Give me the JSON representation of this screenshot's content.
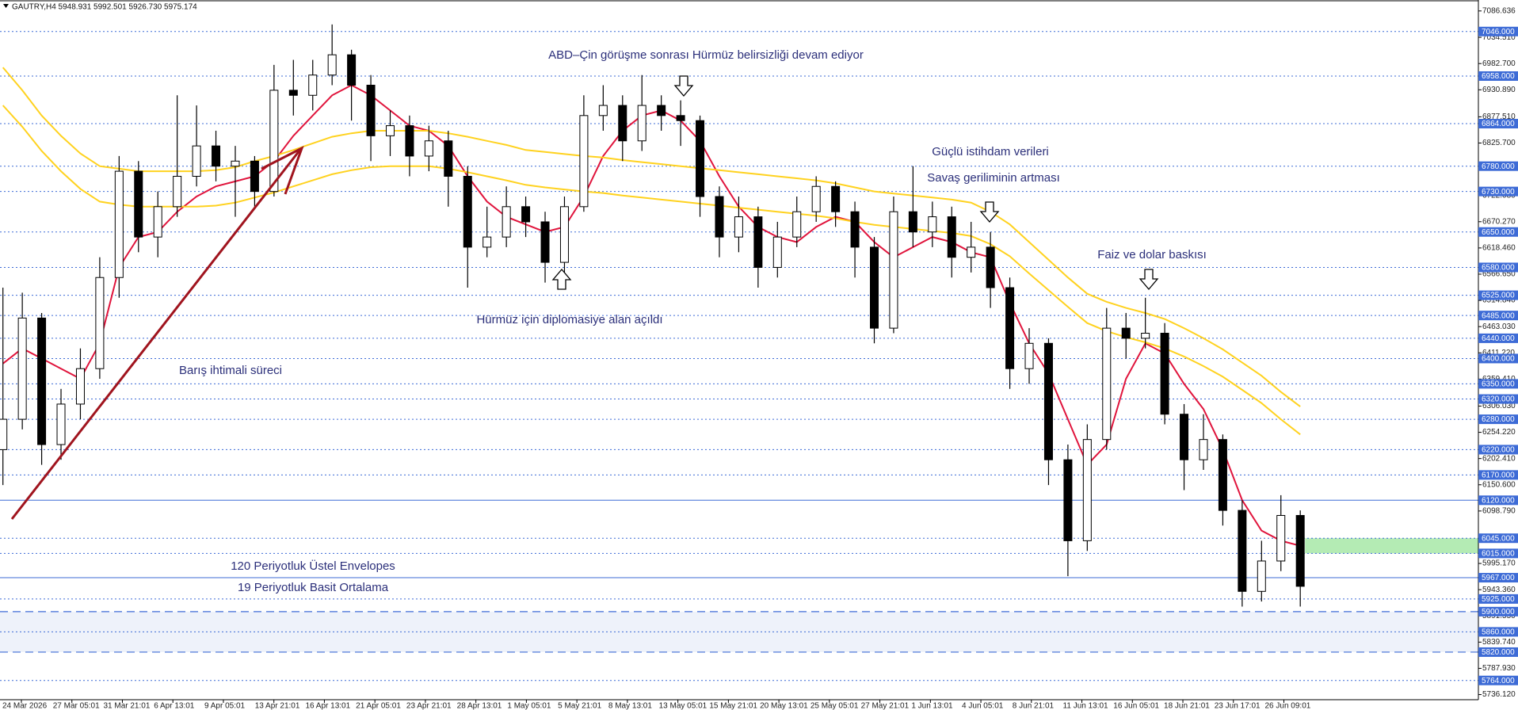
{
  "chart_data": {
    "type": "candlestick",
    "header": "GAUTRY,H4  5948.931 5992.501 5926.730 5975.174",
    "categories": [
      "24 Mar 2026",
      "27 Mar 05:01",
      "31 Mar 21:01",
      "6 Apr 13:01",
      "9 Apr 05:01",
      "13 Apr 21:01",
      "16 Apr 13:01",
      "21 Apr 05:01",
      "23 Apr 21:01",
      "28 Apr 13:01",
      "1 May 05:01",
      "5 May 21:01",
      "8 May 13:01",
      "13 May 05:01",
      "15 May 21:01",
      "20 May 13:01",
      "25 May 05:01",
      "27 May 21:01",
      "1 Jun 13:01",
      "4 Jun 05:01",
      "8 Jun 21:01",
      "11 Jun 13:01",
      "16 Jun 05:01",
      "18 Jun 21:01",
      "23 Jun 17:01",
      "26 Jun 09:01"
    ],
    "ohlc": [
      [
        6220,
        6540,
        6150,
        6280
      ],
      [
        6280,
        6530,
        6260,
        6480
      ],
      [
        6480,
        6490,
        6190,
        6230
      ],
      [
        6230,
        6340,
        6200,
        6310
      ],
      [
        6310,
        6420,
        6280,
        6380
      ],
      [
        6380,
        6600,
        6360,
        6560
      ],
      [
        6560,
        6800,
        6520,
        6770
      ],
      [
        6770,
        6790,
        6610,
        6640
      ],
      [
        6640,
        6730,
        6600,
        6700
      ],
      [
        6700,
        6920,
        6680,
        6760
      ],
      [
        6760,
        6900,
        6740,
        6820
      ],
      [
        6820,
        6850,
        6750,
        6780
      ],
      [
        6780,
        6820,
        6680,
        6790
      ],
      [
        6790,
        6800,
        6700,
        6730
      ],
      [
        6730,
        6980,
        6720,
        6930
      ],
      [
        6930,
        6990,
        6880,
        6920
      ],
      [
        6920,
        6990,
        6890,
        6960
      ],
      [
        6960,
        7060,
        6940,
        7000
      ],
      [
        7000,
        7010,
        6870,
        6940
      ],
      [
        6940,
        6960,
        6790,
        6840
      ],
      [
        6840,
        6890,
        6800,
        6860
      ],
      [
        6860,
        6880,
        6760,
        6800
      ],
      [
        6800,
        6860,
        6770,
        6830
      ],
      [
        6830,
        6850,
        6700,
        6760
      ],
      [
        6760,
        6780,
        6540,
        6620
      ],
      [
        6620,
        6700,
        6600,
        6640
      ],
      [
        6640,
        6740,
        6620,
        6700
      ],
      [
        6700,
        6720,
        6640,
        6670
      ],
      [
        6670,
        6690,
        6550,
        6590
      ],
      [
        6590,
        6720,
        6570,
        6700
      ],
      [
        6700,
        6920,
        6690,
        6880
      ],
      [
        6880,
        6940,
        6850,
        6900
      ],
      [
        6900,
        6920,
        6790,
        6830
      ],
      [
        6830,
        6960,
        6810,
        6900
      ],
      [
        6900,
        6920,
        6850,
        6880
      ],
      [
        6880,
        6910,
        6820,
        6870
      ],
      [
        6870,
        6880,
        6680,
        6720
      ],
      [
        6720,
        6740,
        6600,
        6640
      ],
      [
        6640,
        6720,
        6610,
        6680
      ],
      [
        6680,
        6700,
        6540,
        6580
      ],
      [
        6580,
        6670,
        6560,
        6640
      ],
      [
        6640,
        6720,
        6620,
        6690
      ],
      [
        6690,
        6760,
        6670,
        6740
      ],
      [
        6740,
        6750,
        6660,
        6690
      ],
      [
        6690,
        6710,
        6560,
        6620
      ],
      [
        6620,
        6640,
        6430,
        6460
      ],
      [
        6460,
        6720,
        6450,
        6690
      ],
      [
        6690,
        6780,
        6620,
        6650
      ],
      [
        6650,
        6710,
        6620,
        6680
      ],
      [
        6680,
        6700,
        6560,
        6600
      ],
      [
        6600,
        6670,
        6570,
        6620
      ],
      [
        6620,
        6650,
        6500,
        6540
      ],
      [
        6540,
        6560,
        6340,
        6380
      ],
      [
        6380,
        6460,
        6350,
        6430
      ],
      [
        6430,
        6440,
        6150,
        6200
      ],
      [
        6200,
        6230,
        5970,
        6040
      ],
      [
        6040,
        6270,
        6020,
        6240
      ],
      [
        6240,
        6500,
        6220,
        6460
      ],
      [
        6460,
        6490,
        6400,
        6440
      ],
      [
        6440,
        6520,
        6420,
        6450
      ],
      [
        6450,
        6470,
        6270,
        6290
      ],
      [
        6290,
        6310,
        6140,
        6200
      ],
      [
        6200,
        6290,
        6180,
        6240
      ],
      [
        6240,
        6250,
        6070,
        6100
      ],
      [
        6100,
        6120,
        5910,
        5940
      ],
      [
        5940,
        6040,
        5920,
        6000
      ],
      [
        6000,
        6130,
        5980,
        6090
      ],
      [
        6090,
        6100,
        5910,
        5950
      ]
    ],
    "up_color": "#ffffff",
    "down_color": "#000000",
    "lines": [
      {
        "color": "#e0143c",
        "values": [
          6390,
          6420,
          6400,
          6380,
          6360,
          6430,
          6580,
          6640,
          6650,
          6690,
          6720,
          6740,
          6750,
          6760,
          6790,
          6840,
          6880,
          6920,
          6940,
          6920,
          6890,
          6860,
          6850,
          6820,
          6760,
          6710,
          6680,
          6665,
          6650,
          6660,
          6720,
          6800,
          6850,
          6880,
          6890,
          6870,
          6830,
          6760,
          6700,
          6660,
          6640,
          6630,
          6660,
          6680,
          6670,
          6630,
          6600,
          6620,
          6640,
          6630,
          6610,
          6600,
          6510,
          6430,
          6370,
          6280,
          6190,
          6230,
          6360,
          6430,
          6410,
          6350,
          6300,
          6220,
          6120,
          6060,
          6040,
          6030
        ]
      },
      {
        "color": "#ffd21f",
        "values": [
          6975,
          6930,
          6880,
          6840,
          6805,
          6780,
          6775,
          6770,
          6770,
          6770,
          6770,
          6772,
          6778,
          6790,
          6800,
          6812,
          6825,
          6838,
          6845,
          6850,
          6850,
          6850,
          6850,
          6845,
          6838,
          6830,
          6822,
          6812,
          6808,
          6804,
          6800,
          6797,
          6792,
          6788,
          6784,
          6780,
          6776,
          6772,
          6768,
          6764,
          6760,
          6756,
          6752,
          6746,
          6738,
          6730,
          6726,
          6722,
          6718,
          6714,
          6708,
          6690,
          6665,
          6630,
          6595,
          6560,
          6528,
          6512,
          6500,
          6490,
          6478,
          6460,
          6440,
          6418,
          6392,
          6366,
          6334,
          6305
        ]
      },
      {
        "color": "#ffd21f",
        "values": [
          6900,
          6858,
          6810,
          6770,
          6735,
          6710,
          6704,
          6700,
          6700,
          6700,
          6700,
          6702,
          6708,
          6718,
          6728,
          6740,
          6752,
          6764,
          6772,
          6778,
          6780,
          6780,
          6780,
          6775,
          6768,
          6760,
          6752,
          6743,
          6738,
          6734,
          6730,
          6727,
          6722,
          6718,
          6714,
          6710,
          6706,
          6702,
          6698,
          6694,
          6690,
          6686,
          6682,
          6677,
          6670,
          6664,
          6660,
          6656,
          6652,
          6648,
          6642,
          6626,
          6602,
          6568,
          6535,
          6502,
          6470,
          6454,
          6442,
          6432,
          6420,
          6404,
          6385,
          6364,
          6338,
          6312,
          6280,
          6250
        ]
      }
    ],
    "ylim": [
      5726,
      7102
    ],
    "yticks": [
      {
        "value": 7086.636,
        "label": "7086.636"
      },
      {
        "value": 7034.51,
        "label": "7034.510"
      },
      {
        "value": 6982.7,
        "label": "6982.700"
      },
      {
        "value": 6930.89,
        "label": "6930.890"
      },
      {
        "value": 6877.51,
        "label": "6877.510"
      },
      {
        "value": 6825.7,
        "label": "6825.700"
      },
      {
        "value": 6722.08,
        "label": "6722.080"
      },
      {
        "value": 6670.27,
        "label": "6670.270"
      },
      {
        "value": 6618.46,
        "label": "6618.460"
      },
      {
        "value": 6566.65,
        "label": "6566.650"
      },
      {
        "value": 6514.84,
        "label": "6514.840"
      },
      {
        "value": 6463.03,
        "label": "6463.030"
      },
      {
        "value": 6411.22,
        "label": "6411.220"
      },
      {
        "value": 6359.41,
        "label": "6359.410"
      },
      {
        "value": 6306.03,
        "label": "6306.030"
      },
      {
        "value": 6254.22,
        "label": "6254.220"
      },
      {
        "value": 6202.41,
        "label": "6202.410"
      },
      {
        "value": 6150.6,
        "label": "6150.600"
      },
      {
        "value": 6098.79,
        "label": "6098.790"
      },
      {
        "value": 5995.17,
        "label": "5995.170"
      },
      {
        "value": 5943.36,
        "label": "5943.360"
      },
      {
        "value": 5891.55,
        "label": "5891.550"
      },
      {
        "value": 5839.74,
        "label": "5839.740"
      },
      {
        "value": 5787.93,
        "label": "5787.930"
      },
      {
        "value": 5736.12,
        "label": "5736.120"
      }
    ],
    "levels": [
      {
        "value": 7046,
        "label": "7046.000"
      },
      {
        "value": 6958,
        "label": "6958.000"
      },
      {
        "value": 6864,
        "label": "6864.000"
      },
      {
        "value": 6780,
        "label": "6780.000"
      },
      {
        "value": 6730,
        "label": "6730.000"
      },
      {
        "value": 6650,
        "label": "6650.000"
      },
      {
        "value": 6580,
        "label": "6580.000"
      },
      {
        "value": 6525,
        "label": "6525.000"
      },
      {
        "value": 6485,
        "label": "6485.000"
      },
      {
        "value": 6440,
        "label": "6440.000"
      },
      {
        "value": 6400,
        "label": "6400.000"
      },
      {
        "value": 6350,
        "label": "6350.000"
      },
      {
        "value": 6320,
        "label": "6320.000"
      },
      {
        "value": 6280,
        "label": "6280.000"
      },
      {
        "value": 6220,
        "label": "6220.000"
      },
      {
        "value": 6170,
        "label": "6170.000"
      },
      {
        "value": 6045,
        "label": "6045.000"
      },
      {
        "value": 6015,
        "label": "6015.000"
      },
      {
        "value": 5925,
        "label": "5925.000"
      },
      {
        "value": 5860,
        "label": "5860.000"
      },
      {
        "value": 5764,
        "label": "5764.000"
      }
    ],
    "solid_levels": [
      {
        "value": 6120,
        "label": "6120.000"
      },
      {
        "value": 5967,
        "label": "5967.000"
      }
    ],
    "dashed_levels": [
      {
        "value": 5900,
        "label": "5900.000"
      },
      {
        "value": 5820,
        "label": "5820.000"
      }
    ],
    "level_color": "#3d6bd6",
    "band_color": "#eef2fa",
    "zone": {
      "ylim": [
        6015,
        6045
      ],
      "color": "#b4ebb4"
    },
    "annotations": [
      "ABD–Çin görüşme sonrası Hürmüz belirsizliği devam ediyor",
      "Güçlü istihdam verileri",
      "Savaş geriliminin artması",
      "Faiz ve dolar baskısı",
      "Hürmüz için diplomasiye alan açıldı",
      "Barış ihtimali süreci",
      "120 Periyotluk Üstel Envelopes",
      "19 Periyotluk Basit Ortalama"
    ]
  }
}
